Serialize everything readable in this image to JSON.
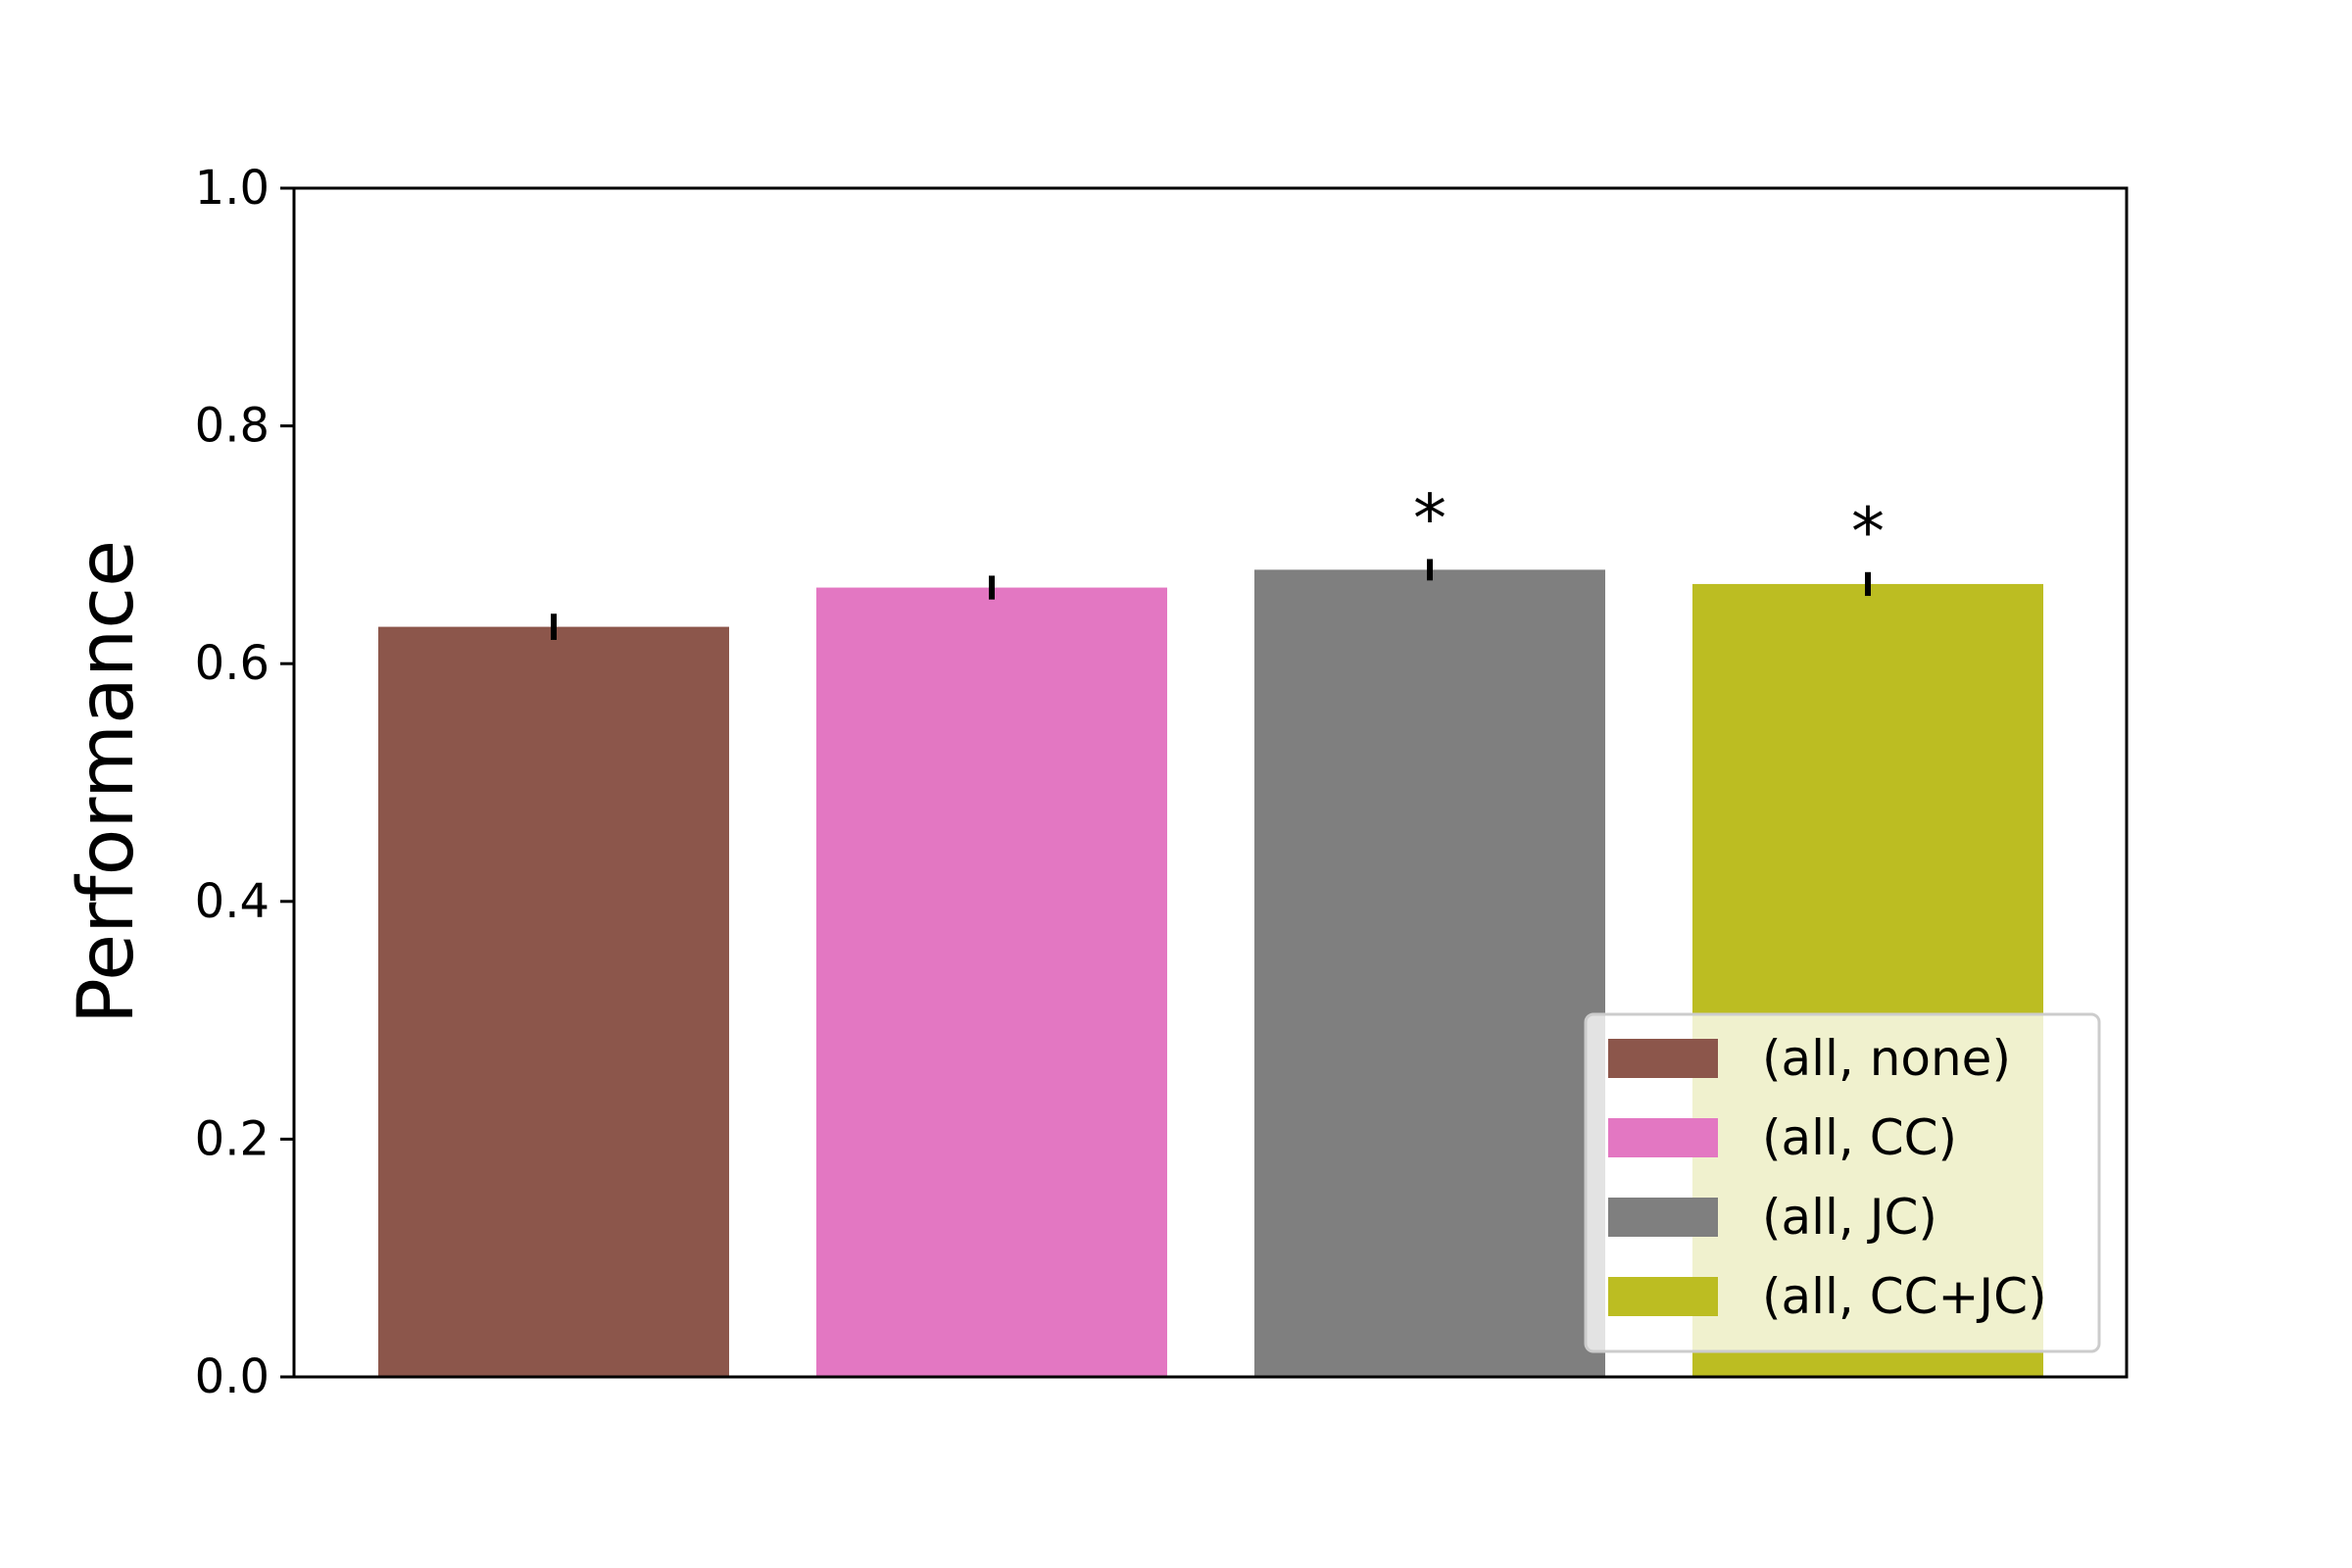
{
  "chart_data": {
    "type": "bar",
    "ylabel": "Performance",
    "ylim": [
      0,
      1.0
    ],
    "yticks": [
      "0.0",
      "0.2",
      "0.4",
      "0.6",
      "0.8",
      "1.0"
    ],
    "grid": false,
    "legend_position": "lower-right",
    "series": [
      {
        "name": "(all, none)",
        "value": 0.631,
        "error": 0.011,
        "color": "#8c564b",
        "marker": ""
      },
      {
        "name": "(all, CC)",
        "value": 0.664,
        "error": 0.01,
        "color": "#e377c2",
        "marker": ""
      },
      {
        "name": "(all, JC)",
        "value": 0.679,
        "error": 0.009,
        "color": "#7f7f7f",
        "marker": "*"
      },
      {
        "name": "(all, CC+JC)",
        "value": 0.667,
        "error": 0.01,
        "color": "#bcbd22",
        "marker": "*"
      }
    ]
  }
}
